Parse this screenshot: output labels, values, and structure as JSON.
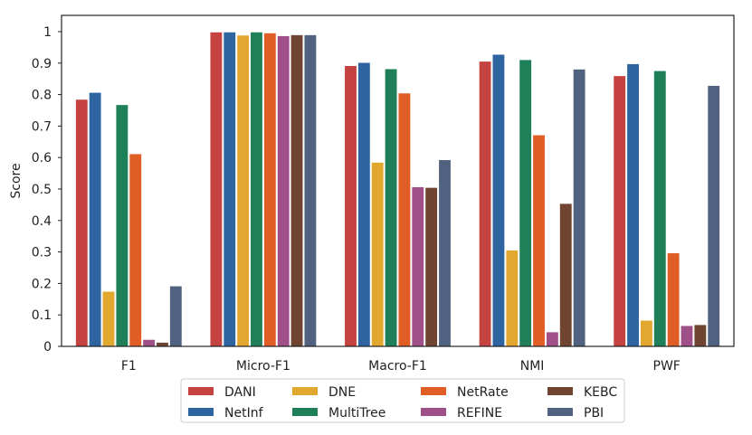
{
  "chart_data": {
    "type": "bar",
    "title": "",
    "xlabel": "",
    "ylabel": "Score",
    "ylim": [
      0,
      1.05
    ],
    "yticks": [
      "0",
      "0.1",
      "0.2",
      "0.3",
      "0.4",
      "0.5",
      "0.6",
      "0.7",
      "0.8",
      "0.9",
      "1"
    ],
    "grid": false,
    "legend_position": "bottom-center",
    "categories": [
      "F1",
      "Micro-F1",
      "Macro-F1",
      "NMI",
      "PWF"
    ],
    "series": [
      {
        "name": "DANI",
        "color": "#c44240",
        "values": [
          0.785,
          0.999,
          0.892,
          0.906,
          0.86
        ]
      },
      {
        "name": "NetInf",
        "color": "#2e64a0",
        "values": [
          0.807,
          0.999,
          0.902,
          0.928,
          0.898
        ]
      },
      {
        "name": "DNE",
        "color": "#e2a72e",
        "values": [
          0.175,
          0.989,
          0.585,
          0.306,
          0.083
        ]
      },
      {
        "name": "MultiTree",
        "color": "#1f7f58",
        "values": [
          0.768,
          0.999,
          0.882,
          0.911,
          0.876
        ]
      },
      {
        "name": "NetRate",
        "color": "#e05d25",
        "values": [
          0.612,
          0.996,
          0.805,
          0.672,
          0.297
        ]
      },
      {
        "name": "REFINE",
        "color": "#a05089",
        "values": [
          0.022,
          0.987,
          0.507,
          0.046,
          0.066
        ]
      },
      {
        "name": "KEBC",
        "color": "#6f4430",
        "values": [
          0.013,
          0.99,
          0.505,
          0.454,
          0.069
        ]
      },
      {
        "name": "PBI",
        "color": "#50627f",
        "values": [
          0.192,
          0.99,
          0.593,
          0.881,
          0.829
        ]
      }
    ]
  }
}
